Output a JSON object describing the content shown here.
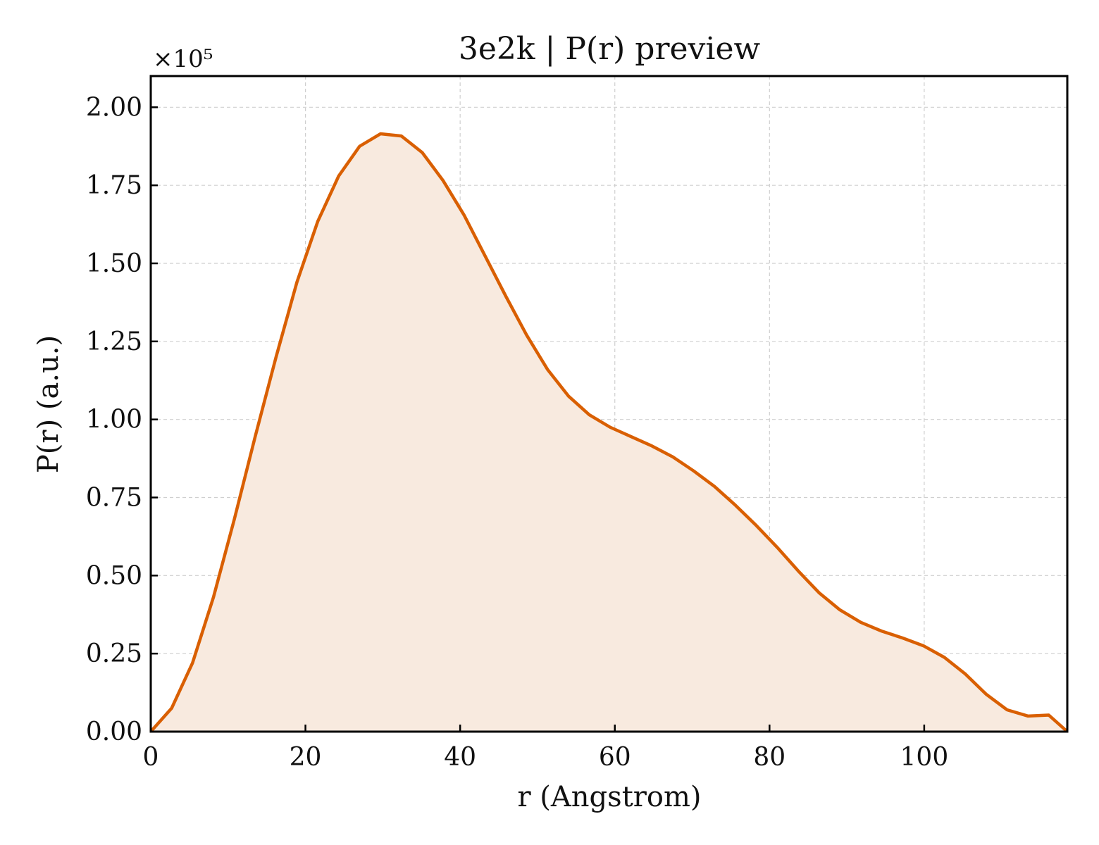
{
  "chart_data": {
    "type": "area",
    "title": "3e2k | P(r) preview",
    "xlabel": "r (Angstrom)",
    "ylabel": "P(r) (a.u.)",
    "y_exponent_label": "×10⁵",
    "y_scale_factor": 100000,
    "xlim": [
      0,
      118.5
    ],
    "ylim": [
      0,
      2.1
    ],
    "x_ticks": [
      0,
      20,
      40,
      60,
      80,
      100
    ],
    "x_tick_labels": [
      "0",
      "20",
      "40",
      "60",
      "80",
      "100"
    ],
    "y_ticks": [
      0,
      0.25,
      0.5,
      0.75,
      1.0,
      1.25,
      1.5,
      1.75,
      2.0
    ],
    "y_tick_labels": [
      "0.00",
      "0.25",
      "0.50",
      "0.75",
      "1.00",
      "1.25",
      "1.50",
      "1.75",
      "2.00"
    ],
    "grid": true,
    "line_color": "#d95f02",
    "fill_color": "#f8eadf",
    "series": [
      {
        "x": [
          0.0,
          2.7,
          5.4,
          8.1,
          10.8,
          13.5,
          16.2,
          18.9,
          21.6,
          24.3,
          27.0,
          29.7,
          32.4,
          35.1,
          37.8,
          40.5,
          43.2,
          45.9,
          48.6,
          51.3,
          54.0,
          56.7,
          59.4,
          62.1,
          64.8,
          67.5,
          70.2,
          72.9,
          75.6,
          78.3,
          81.0,
          83.7,
          86.4,
          89.1,
          91.8,
          94.5,
          97.2,
          99.9,
          102.6,
          105.3,
          108.0,
          110.7,
          113.4,
          116.1,
          118.5
        ],
        "y": [
          0.0,
          0.075,
          0.22,
          0.43,
          0.68,
          0.945,
          1.2,
          1.44,
          1.635,
          1.78,
          1.875,
          1.915,
          1.908,
          1.855,
          1.765,
          1.655,
          1.525,
          1.395,
          1.27,
          1.16,
          1.075,
          1.015,
          0.975,
          0.945,
          0.915,
          0.88,
          0.835,
          0.785,
          0.725,
          0.66,
          0.59,
          0.515,
          0.445,
          0.39,
          0.35,
          0.322,
          0.3,
          0.275,
          0.238,
          0.185,
          0.12,
          0.07,
          0.05,
          0.053,
          0.0
        ]
      }
    ]
  }
}
